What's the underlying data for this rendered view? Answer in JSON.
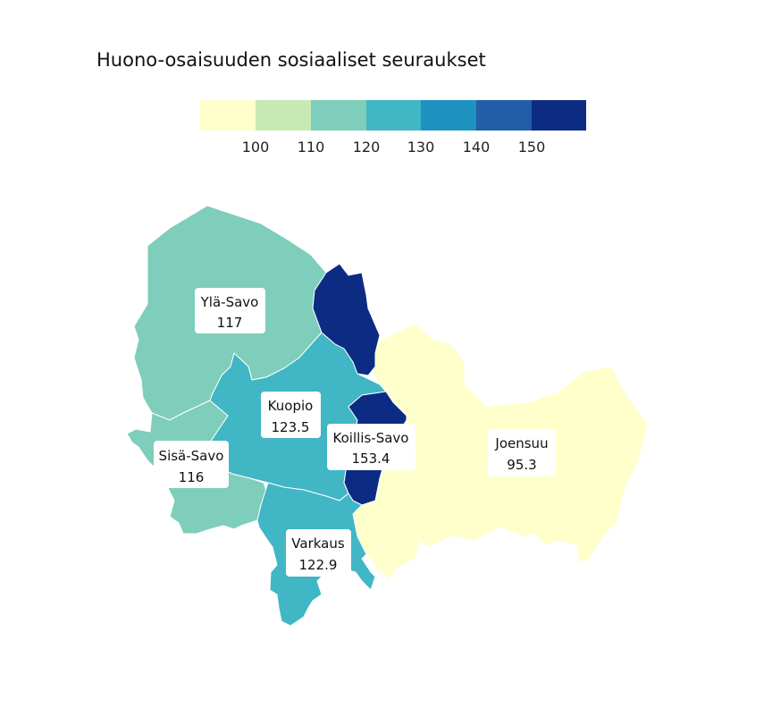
{
  "title": "Huono-osaisuuden sosiaaliset seuraukset",
  "legend": {
    "ticks": [
      "100",
      "110",
      "120",
      "130",
      "140",
      "150"
    ],
    "colors": [
      "#ffffcc",
      "#c7e9b4",
      "#7fcdbb",
      "#41b6c4",
      "#1d91c0",
      "#225ea8",
      "#0c2c84"
    ]
  },
  "regions": [
    {
      "name": "Ylä-Savo",
      "value": "117",
      "color": "#7fcdbb"
    },
    {
      "name": "Kuopio",
      "value": "123.5",
      "color": "#41b6c4"
    },
    {
      "name": "Koillis-Savo",
      "value": "153.4",
      "color": "#0c2c84"
    },
    {
      "name": "Sisä-Savo",
      "value": "116",
      "color": "#7fcdbb"
    },
    {
      "name": "Joensuu",
      "value": "95.3",
      "color": "#ffffcc"
    },
    {
      "name": "Varkaus",
      "value": "122.9",
      "color": "#41b6c4"
    }
  ]
}
